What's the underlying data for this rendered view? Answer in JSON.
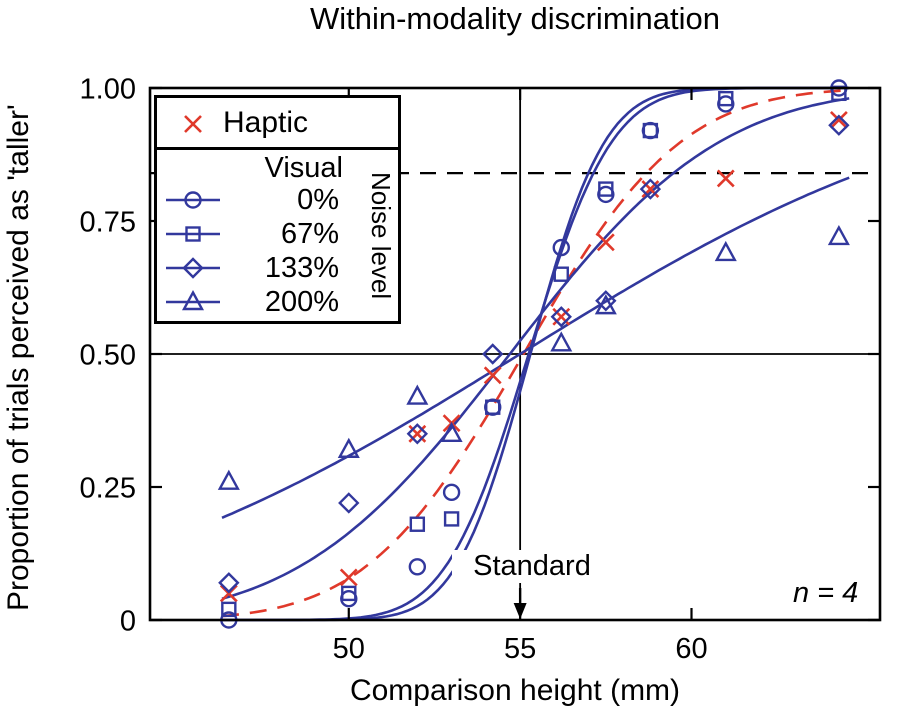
{
  "figure": {
    "title": "Within-modality discrimination",
    "xlabel": "Comparison height (mm)",
    "ylabel": "Proportion of trials perceived as 'taller'",
    "standard_label": "Standard",
    "n_label": "n = 4"
  },
  "legend": {
    "haptic_label": "Haptic",
    "visual_label": "Visual",
    "noise_axis_label": "Noise level",
    "noise_levels": [
      "0%",
      "67%",
      "133%",
      "200%"
    ]
  },
  "colors": {
    "haptic": "#e0392b",
    "visual": "#32389d",
    "axis": "#000000"
  },
  "chart_data": {
    "type": "scatter",
    "title": "Within-modality discrimination",
    "xlabel": "Comparison height (mm)",
    "ylabel": "Proportion of trials perceived as 'taller'",
    "xlim": [
      44.2,
      65.5
    ],
    "ylim": [
      0,
      1
    ],
    "xticks": [
      50,
      55,
      60
    ],
    "xtick_labels": [
      "50",
      "55",
      "60"
    ],
    "yticks": [
      0,
      0.25,
      0.5,
      0.75,
      1.0
    ],
    "ytick_labels": [
      "0",
      "0.25",
      "0.50",
      "0.75",
      "1.00"
    ],
    "grid": false,
    "legend_position": "upper-left",
    "curve_x_range": [
      46.3,
      64.6
    ],
    "reference_lines": {
      "standard_x": 55,
      "chance_y": 0.5,
      "threshold_y": 0.84
    },
    "sample_size": 4,
    "series": [
      {
        "name": "Haptic",
        "marker": "x",
        "color": "#e0392b",
        "line_style": "dashed",
        "fit": {
          "mu": 55.1,
          "sigma": 3.6
        },
        "points": [
          [
            46.5,
            0.05
          ],
          [
            50,
            0.08
          ],
          [
            52,
            0.35
          ],
          [
            53,
            0.37
          ],
          [
            54.2,
            0.46
          ],
          [
            56.2,
            0.57
          ],
          [
            57.5,
            0.71
          ],
          [
            58.8,
            0.81
          ],
          [
            61,
            0.83
          ],
          [
            64.3,
            0.94
          ]
        ]
      },
      {
        "name": "Visual 0% noise",
        "marker": "circle",
        "color": "#32389d",
        "line_style": "solid",
        "fit": {
          "mu": 55.3,
          "sigma": 1.7
        },
        "points": [
          [
            46.5,
            0.0
          ],
          [
            50,
            0.04
          ],
          [
            52,
            0.1
          ],
          [
            53,
            0.24
          ],
          [
            54.2,
            0.4
          ],
          [
            56.2,
            0.7
          ],
          [
            57.5,
            0.8
          ],
          [
            58.8,
            0.92
          ],
          [
            61,
            0.97
          ],
          [
            64.3,
            1.0
          ]
        ]
      },
      {
        "name": "Visual 67% noise",
        "marker": "square",
        "color": "#32389d",
        "line_style": "solid",
        "fit": {
          "mu": 55.25,
          "sigma": 1.9
        },
        "points": [
          [
            46.5,
            0.02
          ],
          [
            50,
            0.05
          ],
          [
            52,
            0.18
          ],
          [
            53,
            0.19
          ],
          [
            54.2,
            0.4
          ],
          [
            56.2,
            0.65
          ],
          [
            57.5,
            0.81
          ],
          [
            58.8,
            0.92
          ],
          [
            61,
            0.98
          ],
          [
            64.3,
            0.99
          ]
        ]
      },
      {
        "name": "Visual 133% noise",
        "marker": "diamond",
        "color": "#32389d",
        "line_style": "solid",
        "fit": {
          "mu": 54.7,
          "sigma": 4.8
        },
        "points": [
          [
            46.5,
            0.07
          ],
          [
            50,
            0.22
          ],
          [
            52,
            0.35
          ],
          [
            54.2,
            0.5
          ],
          [
            56.2,
            0.57
          ],
          [
            57.5,
            0.6
          ],
          [
            58.8,
            0.81
          ],
          [
            64.3,
            0.93
          ]
        ]
      },
      {
        "name": "Visual 200% noise",
        "marker": "triangle",
        "color": "#32389d",
        "line_style": "solid",
        "fit": {
          "mu": 55.0,
          "sigma": 10.0
        },
        "points": [
          [
            46.5,
            0.26
          ],
          [
            50,
            0.32
          ],
          [
            52,
            0.42
          ],
          [
            53,
            0.35
          ],
          [
            56.2,
            0.52
          ],
          [
            57.5,
            0.59
          ],
          [
            61,
            0.69
          ],
          [
            64.3,
            0.72
          ]
        ]
      }
    ]
  }
}
